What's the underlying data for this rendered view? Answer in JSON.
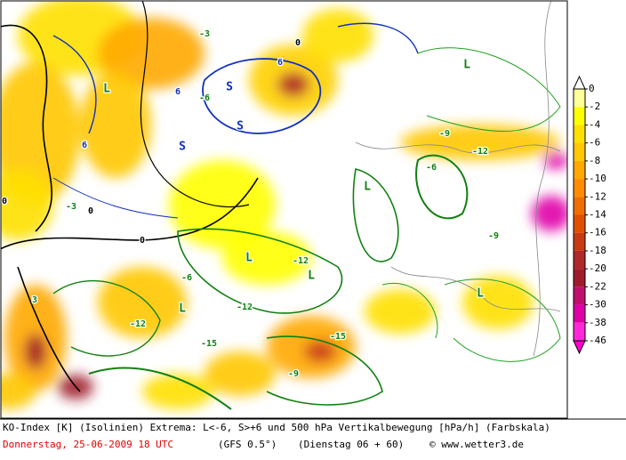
{
  "map": {
    "labels": [
      "S",
      "S",
      "S",
      "6",
      "6",
      "6",
      "0",
      "0",
      "0",
      "0",
      "-3",
      "-3",
      "3",
      "L",
      "L",
      "L",
      "L",
      "L",
      "L",
      "L",
      "-6",
      "-6",
      "-6",
      "-9",
      "-9",
      "-9",
      "-12",
      "-12",
      "-12",
      "-12",
      "-15",
      "-15"
    ]
  },
  "colorbar": {
    "ticks": [
      0,
      -2,
      -4,
      -6,
      -8,
      -10,
      -12,
      -14,
      -16,
      -18,
      -20,
      -22,
      -30,
      -38,
      -46
    ],
    "colors": [
      "#ffff99",
      "#ffff00",
      "#ffe000",
      "#ffc800",
      "#ffa800",
      "#ff8c00",
      "#f06e00",
      "#e05000",
      "#c83a14",
      "#b02828",
      "#a01c2c",
      "#c0106e",
      "#e000a8",
      "#ff28d8"
    ],
    "above_color": "#ffffff",
    "below_color": "#ff00cc"
  },
  "caption": {
    "line1": "KO-Index [K] (Isolinien) Extrema: L<-6, S>+6 und 500 hPa Vertikalbewegung [hPa/h] (Farbskala)",
    "date": "Donnerstag, 25-06-2009  18 UTC",
    "model": "(GFS 0.5°)",
    "run": "(Dienstag 06 + 60)",
    "copyright": "© www.wetter3.de"
  }
}
